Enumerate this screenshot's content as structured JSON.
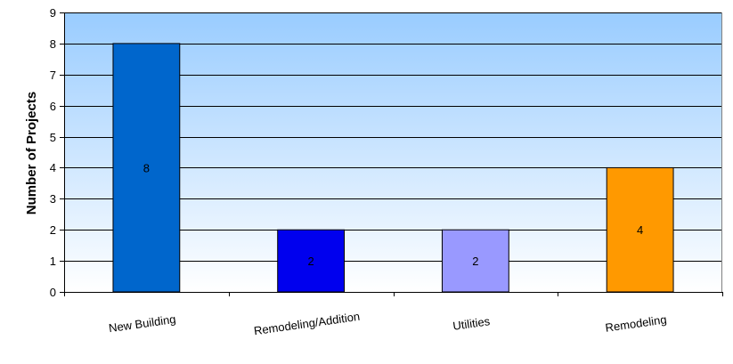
{
  "chart_data": {
    "type": "bar",
    "title": "",
    "xlabel": "",
    "ylabel": "Number of Projects",
    "ylim": [
      0,
      9
    ],
    "yticks": [
      "0",
      "1",
      "2",
      "3",
      "4",
      "5",
      "6",
      "7",
      "8",
      "9"
    ],
    "grid": true,
    "categories": [
      "New Building",
      "Remodeling/Addition",
      "Utilities",
      "Remodeling"
    ],
    "values": [
      8,
      2,
      2,
      4
    ],
    "data_labels": [
      "8",
      "2",
      "2",
      "4"
    ],
    "bar_colors": [
      "#0066CC",
      "#0000EE",
      "#9999FF",
      "#FF9900"
    ],
    "plot_background": {
      "top": "#99CCFF",
      "bottom": "#FFFFFF"
    }
  }
}
